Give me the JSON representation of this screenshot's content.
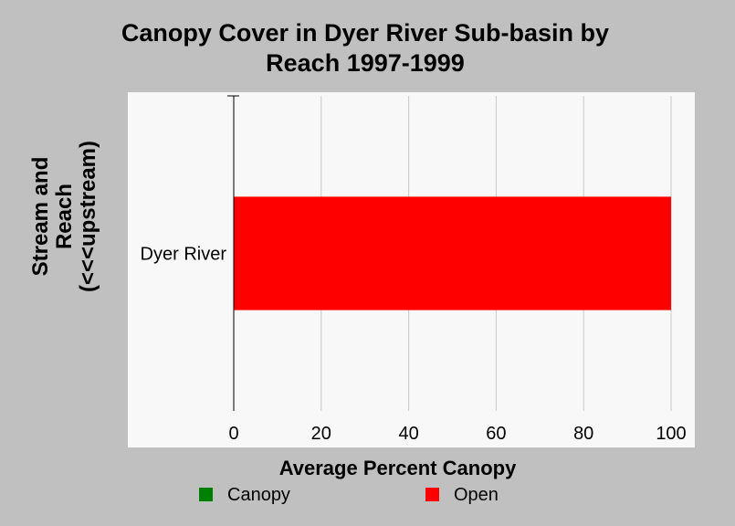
{
  "title_line1": "Canopy Cover in Dyer River Sub-basin by",
  "title_line2": "Reach 1997-1999",
  "chart_data": {
    "type": "bar",
    "orientation": "horizontal",
    "stacked": true,
    "title": "Canopy Cover in Dyer River Sub-basin by Reach 1997-1999",
    "xlabel": "Average Percent Canopy",
    "ylabel": "Stream and Reach (<<<upstream)",
    "ylabel_lines": [
      "Stream and",
      "Reach",
      "(<<<upstream)"
    ],
    "categories": [
      "Dyer River"
    ],
    "series": [
      {
        "name": "Canopy",
        "color": "#008000",
        "values": [
          0
        ]
      },
      {
        "name": "Open",
        "color": "#ff0000",
        "values": [
          100
        ]
      }
    ],
    "xlim": [
      0,
      100
    ],
    "xticks": [
      0,
      20,
      40,
      60,
      80,
      100
    ],
    "grid": "vertical",
    "legend_position": "bottom"
  }
}
